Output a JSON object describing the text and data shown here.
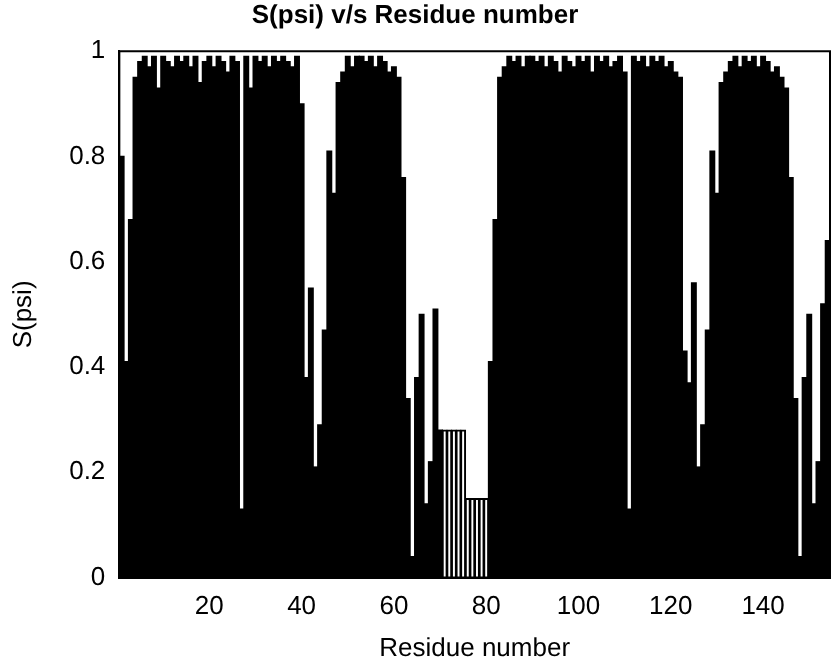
{
  "chart_data": {
    "type": "bar",
    "title": "S(psi) v/s Residue number",
    "xlabel": "Residue number",
    "ylabel": "S(psi)",
    "x": [
      1,
      2,
      3,
      4,
      5,
      6,
      7,
      8,
      9,
      10,
      11,
      12,
      13,
      14,
      15,
      16,
      17,
      18,
      19,
      20,
      21,
      22,
      23,
      24,
      25,
      26,
      27,
      28,
      29,
      30,
      31,
      32,
      33,
      34,
      35,
      36,
      37,
      38,
      39,
      40,
      41,
      42,
      43,
      44,
      45,
      46,
      47,
      48,
      49,
      50,
      51,
      52,
      53,
      54,
      55,
      56,
      57,
      58,
      59,
      60,
      61,
      62,
      63,
      64,
      65,
      66,
      67,
      68,
      69,
      70,
      71,
      72,
      73,
      74,
      75,
      76,
      77,
      78,
      79,
      80,
      81,
      82,
      83,
      84,
      85,
      86,
      87,
      88,
      89,
      90,
      91,
      92,
      93,
      94,
      95,
      96,
      97,
      98,
      99,
      100,
      101,
      102,
      103,
      104,
      105,
      106,
      107,
      108,
      109,
      110,
      111,
      112,
      113,
      114,
      115,
      116,
      117,
      118,
      119,
      120,
      121,
      122,
      123,
      124,
      125,
      126,
      127,
      128,
      129,
      130,
      131,
      132,
      133,
      134,
      135,
      136,
      137,
      138,
      139,
      140,
      141,
      142,
      143,
      144,
      145,
      146,
      147,
      148,
      149,
      150,
      151,
      152,
      153,
      154
    ],
    "values": [
      0.8,
      0.41,
      0.68,
      0.95,
      0.98,
      0.99,
      0.97,
      0.99,
      0.93,
      0.99,
      0.98,
      0.97,
      0.99,
      0.98,
      0.99,
      0.97,
      0.99,
      0.94,
      0.98,
      0.99,
      0.97,
      0.99,
      0.98,
      0.96,
      0.99,
      0.98,
      0.13,
      0.99,
      0.93,
      0.99,
      0.98,
      0.99,
      0.97,
      0.99,
      0.98,
      0.99,
      0.98,
      0.97,
      0.99,
      0.9,
      0.38,
      0.55,
      0.21,
      0.29,
      0.47,
      0.81,
      0.73,
      0.94,
      0.96,
      0.99,
      0.97,
      0.99,
      0.99,
      0.98,
      0.99,
      0.97,
      0.99,
      0.98,
      0.96,
      0.97,
      0.95,
      0.76,
      0.34,
      0.04,
      0.38,
      0.5,
      0.14,
      0.22,
      0.51,
      0.28,
      0.28,
      0.28,
      0.28,
      0.28,
      0.28,
      0.15,
      0.15,
      0.15,
      0.15,
      0.15,
      0.41,
      0.68,
      0.95,
      0.97,
      0.99,
      0.98,
      0.99,
      0.97,
      0.99,
      0.99,
      0.98,
      0.99,
      0.97,
      0.99,
      0.98,
      0.96,
      0.99,
      0.98,
      0.97,
      0.99,
      0.98,
      0.99,
      0.96,
      0.99,
      0.98,
      0.99,
      0.97,
      0.98,
      0.99,
      0.96,
      0.13,
      0.99,
      0.98,
      0.99,
      0.97,
      0.99,
      0.98,
      0.99,
      0.97,
      0.98,
      0.96,
      0.95,
      0.43,
      0.37,
      0.56,
      0.21,
      0.29,
      0.47,
      0.81,
      0.73,
      0.94,
      0.96,
      0.98,
      0.99,
      0.97,
      0.99,
      0.98,
      0.99,
      0.97,
      0.99,
      0.98,
      0.96,
      0.97,
      0.95,
      0.93,
      0.76,
      0.34,
      0.04,
      0.38,
      0.5,
      0.14,
      0.22,
      0.52,
      0.64
    ],
    "colors": [
      "#000000",
      "#000000",
      "#000000",
      "#000000",
      "#000000",
      "#000000",
      "#000000",
      "#000000",
      "#000000",
      "#000000",
      "#000000",
      "#000000",
      "#000000",
      "#000000",
      "#000000",
      "#000000",
      "#000000",
      "#000000",
      "#000000",
      "#000000",
      "#000000",
      "#000000",
      "#000000",
      "#000000",
      "#000000",
      "#000000",
      "#000000",
      "#000000",
      "#000000",
      "#000000",
      "#000000",
      "#000000",
      "#000000",
      "#000000",
      "#000000",
      "#000000",
      "#000000",
      "#000000",
      "#000000",
      "#000000",
      "#000000",
      "#000000",
      "#000000",
      "#000000",
      "#000000",
      "#000000",
      "#000000",
      "#000000",
      "#000000",
      "#000000",
      "#000000",
      "#000000",
      "#000000",
      "#000000",
      "#000000",
      "#000000",
      "#000000",
      "#000000",
      "#000000",
      "#000000",
      "#000000",
      "#000000",
      "#000000",
      "#000000",
      "#000000",
      "#000000",
      "#000000",
      "#000000",
      "#000000",
      "#000000",
      "#ffffff",
      "#ffffff",
      "#ffffff",
      "#ffffff",
      "#ffffff",
      "#ffffff",
      "#ffffff",
      "#ffffff",
      "#ffffff",
      "#ffffff",
      "#000000",
      "#000000",
      "#000000",
      "#000000",
      "#000000",
      "#000000",
      "#000000",
      "#000000",
      "#000000",
      "#000000",
      "#000000",
      "#000000",
      "#000000",
      "#000000",
      "#000000",
      "#000000",
      "#000000",
      "#000000",
      "#000000",
      "#000000",
      "#000000",
      "#000000",
      "#000000",
      "#000000",
      "#000000",
      "#000000",
      "#000000",
      "#000000",
      "#000000",
      "#000000",
      "#000000",
      "#000000",
      "#000000",
      "#000000",
      "#000000",
      "#000000",
      "#000000",
      "#000000",
      "#000000",
      "#000000",
      "#000000",
      "#000000",
      "#000000",
      "#000000",
      "#000000",
      "#000000",
      "#000000",
      "#000000",
      "#000000",
      "#000000",
      "#000000",
      "#000000",
      "#000000",
      "#000000",
      "#000000",
      "#000000",
      "#000000",
      "#000000",
      "#000000",
      "#000000",
      "#000000",
      "#000000",
      "#000000",
      "#000000",
      "#000000",
      "#000000",
      "#000000",
      "#000000",
      "#000000",
      "#000000",
      "#000000",
      "#000000",
      "#000000",
      "#000000"
    ],
    "xlim": [
      0.5,
      154.5
    ],
    "xticks": [
      20,
      40,
      60,
      80,
      100,
      120,
      140
    ],
    "ylim": [
      0,
      1
    ],
    "yticks": [
      0,
      0.2,
      0.4,
      0.6,
      0.8,
      1
    ],
    "legend": false,
    "grid": false
  }
}
